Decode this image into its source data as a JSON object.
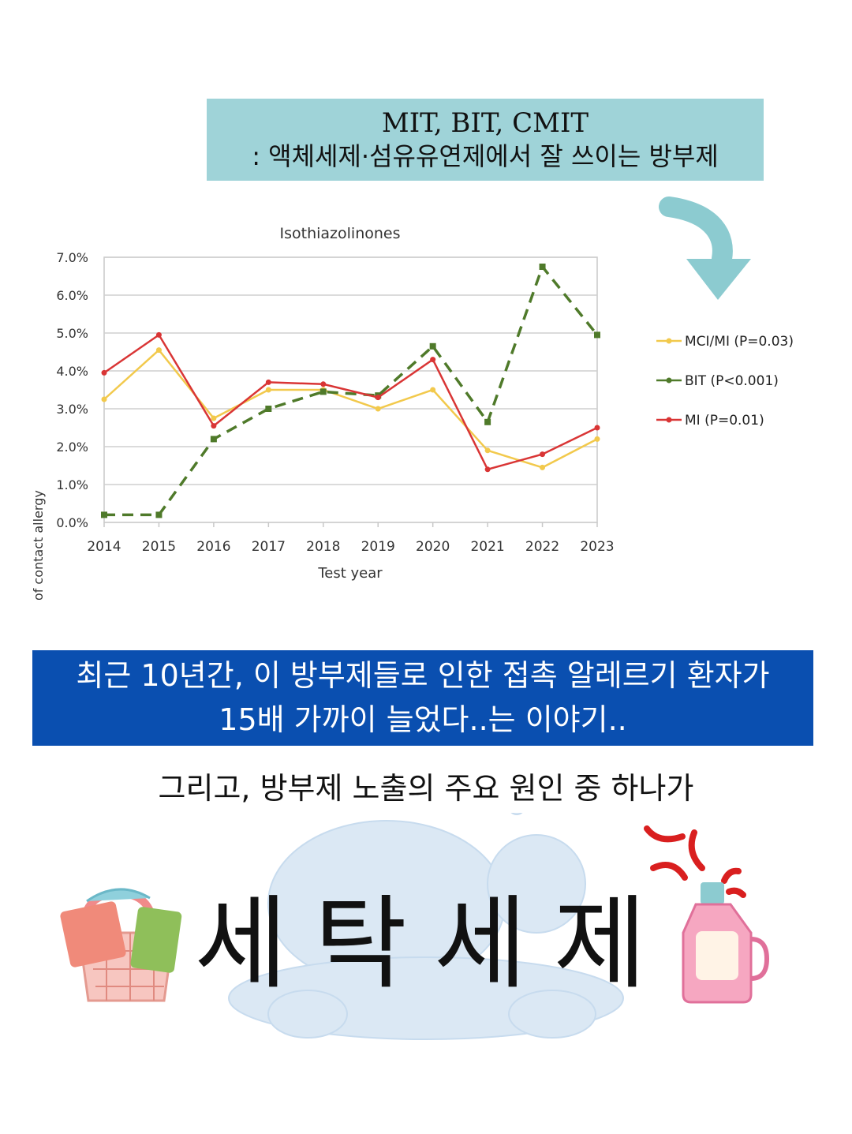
{
  "top_banner": {
    "line1": "MIT, BIT, CMIT",
    "line2": ": 액체세제·섬유유연제에서 잘 쓰이는 방부제"
  },
  "chart_data": {
    "type": "line",
    "title": "Isothiazolinones",
    "xlabel": "Test year",
    "ylabel": "Frequency of contact allergy",
    "x": [
      "2014",
      "2015",
      "2016",
      "2017",
      "2018",
      "2019",
      "2020",
      "2021",
      "2022",
      "2023"
    ],
    "ylim": [
      0,
      7
    ],
    "yticks": [
      "0.0%",
      "1.0%",
      "2.0%",
      "3.0%",
      "4.0%",
      "5.0%",
      "6.0%",
      "7.0%"
    ],
    "grid": true,
    "legend_position": "right",
    "series": [
      {
        "name": "MCI/MI (P=0.03)",
        "color": "#f2c94c",
        "style": "solid",
        "values": [
          3.25,
          4.55,
          2.75,
          3.5,
          3.5,
          3.0,
          3.5,
          1.9,
          1.45,
          2.2
        ]
      },
      {
        "name": "BIT (P<0.001)",
        "color": "#4f7a2a",
        "style": "dashed",
        "values": [
          0.2,
          0.2,
          2.2,
          3.0,
          3.45,
          3.35,
          4.65,
          2.65,
          6.75,
          4.95
        ]
      },
      {
        "name": "MI (P=0.01)",
        "color": "#d93535",
        "style": "solid",
        "values": [
          3.95,
          4.95,
          2.55,
          3.7,
          3.65,
          3.3,
          4.3,
          1.4,
          1.8,
          2.5
        ]
      }
    ]
  },
  "blue_banner": {
    "line1": "최근 10년간, 이 방부제들로 인한 접촉 알레르기 환자가",
    "line2": "15배 가까이 늘었다..는 이야기.."
  },
  "sub_text": "그리고, 방부제 노출의 주요 원인 중 하나가",
  "headline": "세탁세제",
  "icons": [
    "down-arrow-icon",
    "laundry-basket-icon",
    "detergent-bottle-icon",
    "anger-mark-icon",
    "bubbles-icon"
  ],
  "colors": {
    "banner_teal": "#9fd3d8",
    "banner_blue": "#0a4fb0",
    "arrow_teal": "#8ccbd0"
  }
}
